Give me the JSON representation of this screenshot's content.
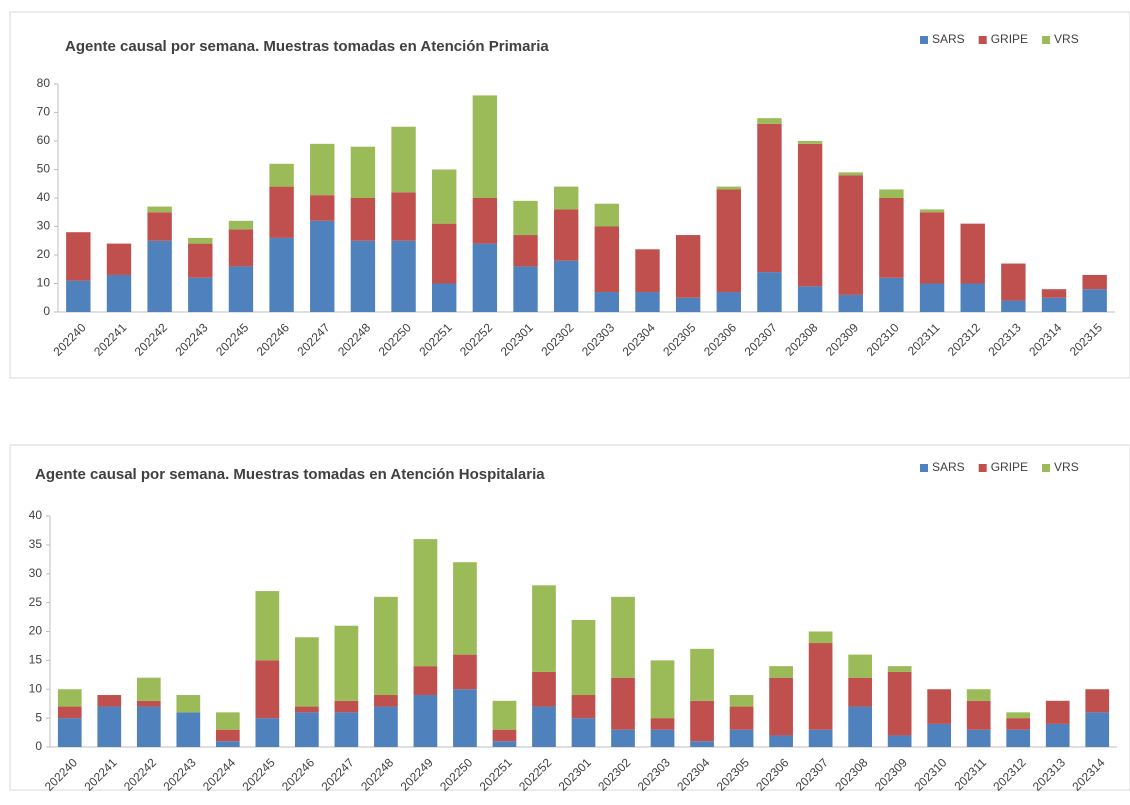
{
  "chart_data": [
    {
      "type": "stacked-bar",
      "title": "Agente causal por semana. Muestras tomadas en Atención Primaria",
      "categories": [
        "202240",
        "202241",
        "202242",
        "202243",
        "202245",
        "202246",
        "202247",
        "202248",
        "202250",
        "202251",
        "202252",
        "202301",
        "202302",
        "202303",
        "202304",
        "202305",
        "202306",
        "202307",
        "202308",
        "202309",
        "202310",
        "202311",
        "202312",
        "202313",
        "202314",
        "202315"
      ],
      "series": [
        {
          "name": "SARS",
          "color": "#4f81bd",
          "values": [
            11,
            13,
            25,
            12,
            16,
            26,
            32,
            25,
            25,
            10,
            24,
            16,
            18,
            7,
            7,
            5,
            7,
            14,
            9,
            6,
            12,
            10,
            10,
            4,
            5,
            8
          ]
        },
        {
          "name": "GRIPE",
          "color": "#c0504d",
          "values": [
            17,
            11,
            10,
            12,
            13,
            18,
            9,
            15,
            17,
            21,
            16,
            11,
            18,
            23,
            15,
            22,
            36,
            52,
            50,
            42,
            28,
            25,
            21,
            13,
            3,
            5
          ]
        },
        {
          "name": "VRS",
          "color": "#9bbb59",
          "values": [
            0,
            0,
            2,
            2,
            3,
            8,
            18,
            18,
            23,
            19,
            36,
            12,
            8,
            8,
            0,
            0,
            1,
            2,
            1,
            1,
            3,
            1,
            0,
            0,
            0,
            0
          ]
        }
      ],
      "ylim": [
        0,
        80
      ],
      "yticks": [
        0,
        10,
        20,
        30,
        40,
        50,
        60,
        70,
        80
      ],
      "legend": "top-right"
    },
    {
      "type": "stacked-bar",
      "title": "Agente causal por semana. Muestras tomadas en Atención Hospitalaria",
      "categories": [
        "202240",
        "202241",
        "202242",
        "202243",
        "202244",
        "202245",
        "202246",
        "202247",
        "202248",
        "202249",
        "202250",
        "202251",
        "202252",
        "202301",
        "202302",
        "202303",
        "202304",
        "202305",
        "202306",
        "202307",
        "202308",
        "202309",
        "202310",
        "202311",
        "202312",
        "202313",
        "202314"
      ],
      "series": [
        {
          "name": "SARS",
          "color": "#4f81bd",
          "values": [
            5,
            7,
            7,
            6,
            1,
            5,
            6,
            6,
            7,
            9,
            10,
            1,
            7,
            5,
            3,
            3,
            1,
            3,
            2,
            3,
            7,
            2,
            4,
            3,
            3,
            4,
            6
          ]
        },
        {
          "name": "GRIPE",
          "color": "#c0504d",
          "values": [
            2,
            2,
            1,
            0,
            2,
            10,
            1,
            2,
            2,
            5,
            6,
            2,
            6,
            4,
            9,
            2,
            7,
            4,
            10,
            15,
            5,
            11,
            6,
            5,
            2,
            4,
            4
          ]
        },
        {
          "name": "VRS",
          "color": "#9bbb59",
          "values": [
            3,
            0,
            4,
            3,
            3,
            12,
            12,
            13,
            17,
            22,
            16,
            5,
            15,
            13,
            14,
            10,
            9,
            2,
            2,
            2,
            4,
            1,
            0,
            2,
            1,
            0,
            0
          ]
        }
      ],
      "ylim": [
        0,
        40
      ],
      "yticks": [
        0,
        5,
        10,
        15,
        20,
        25,
        30,
        35,
        40
      ],
      "legend": "top-right"
    }
  ]
}
